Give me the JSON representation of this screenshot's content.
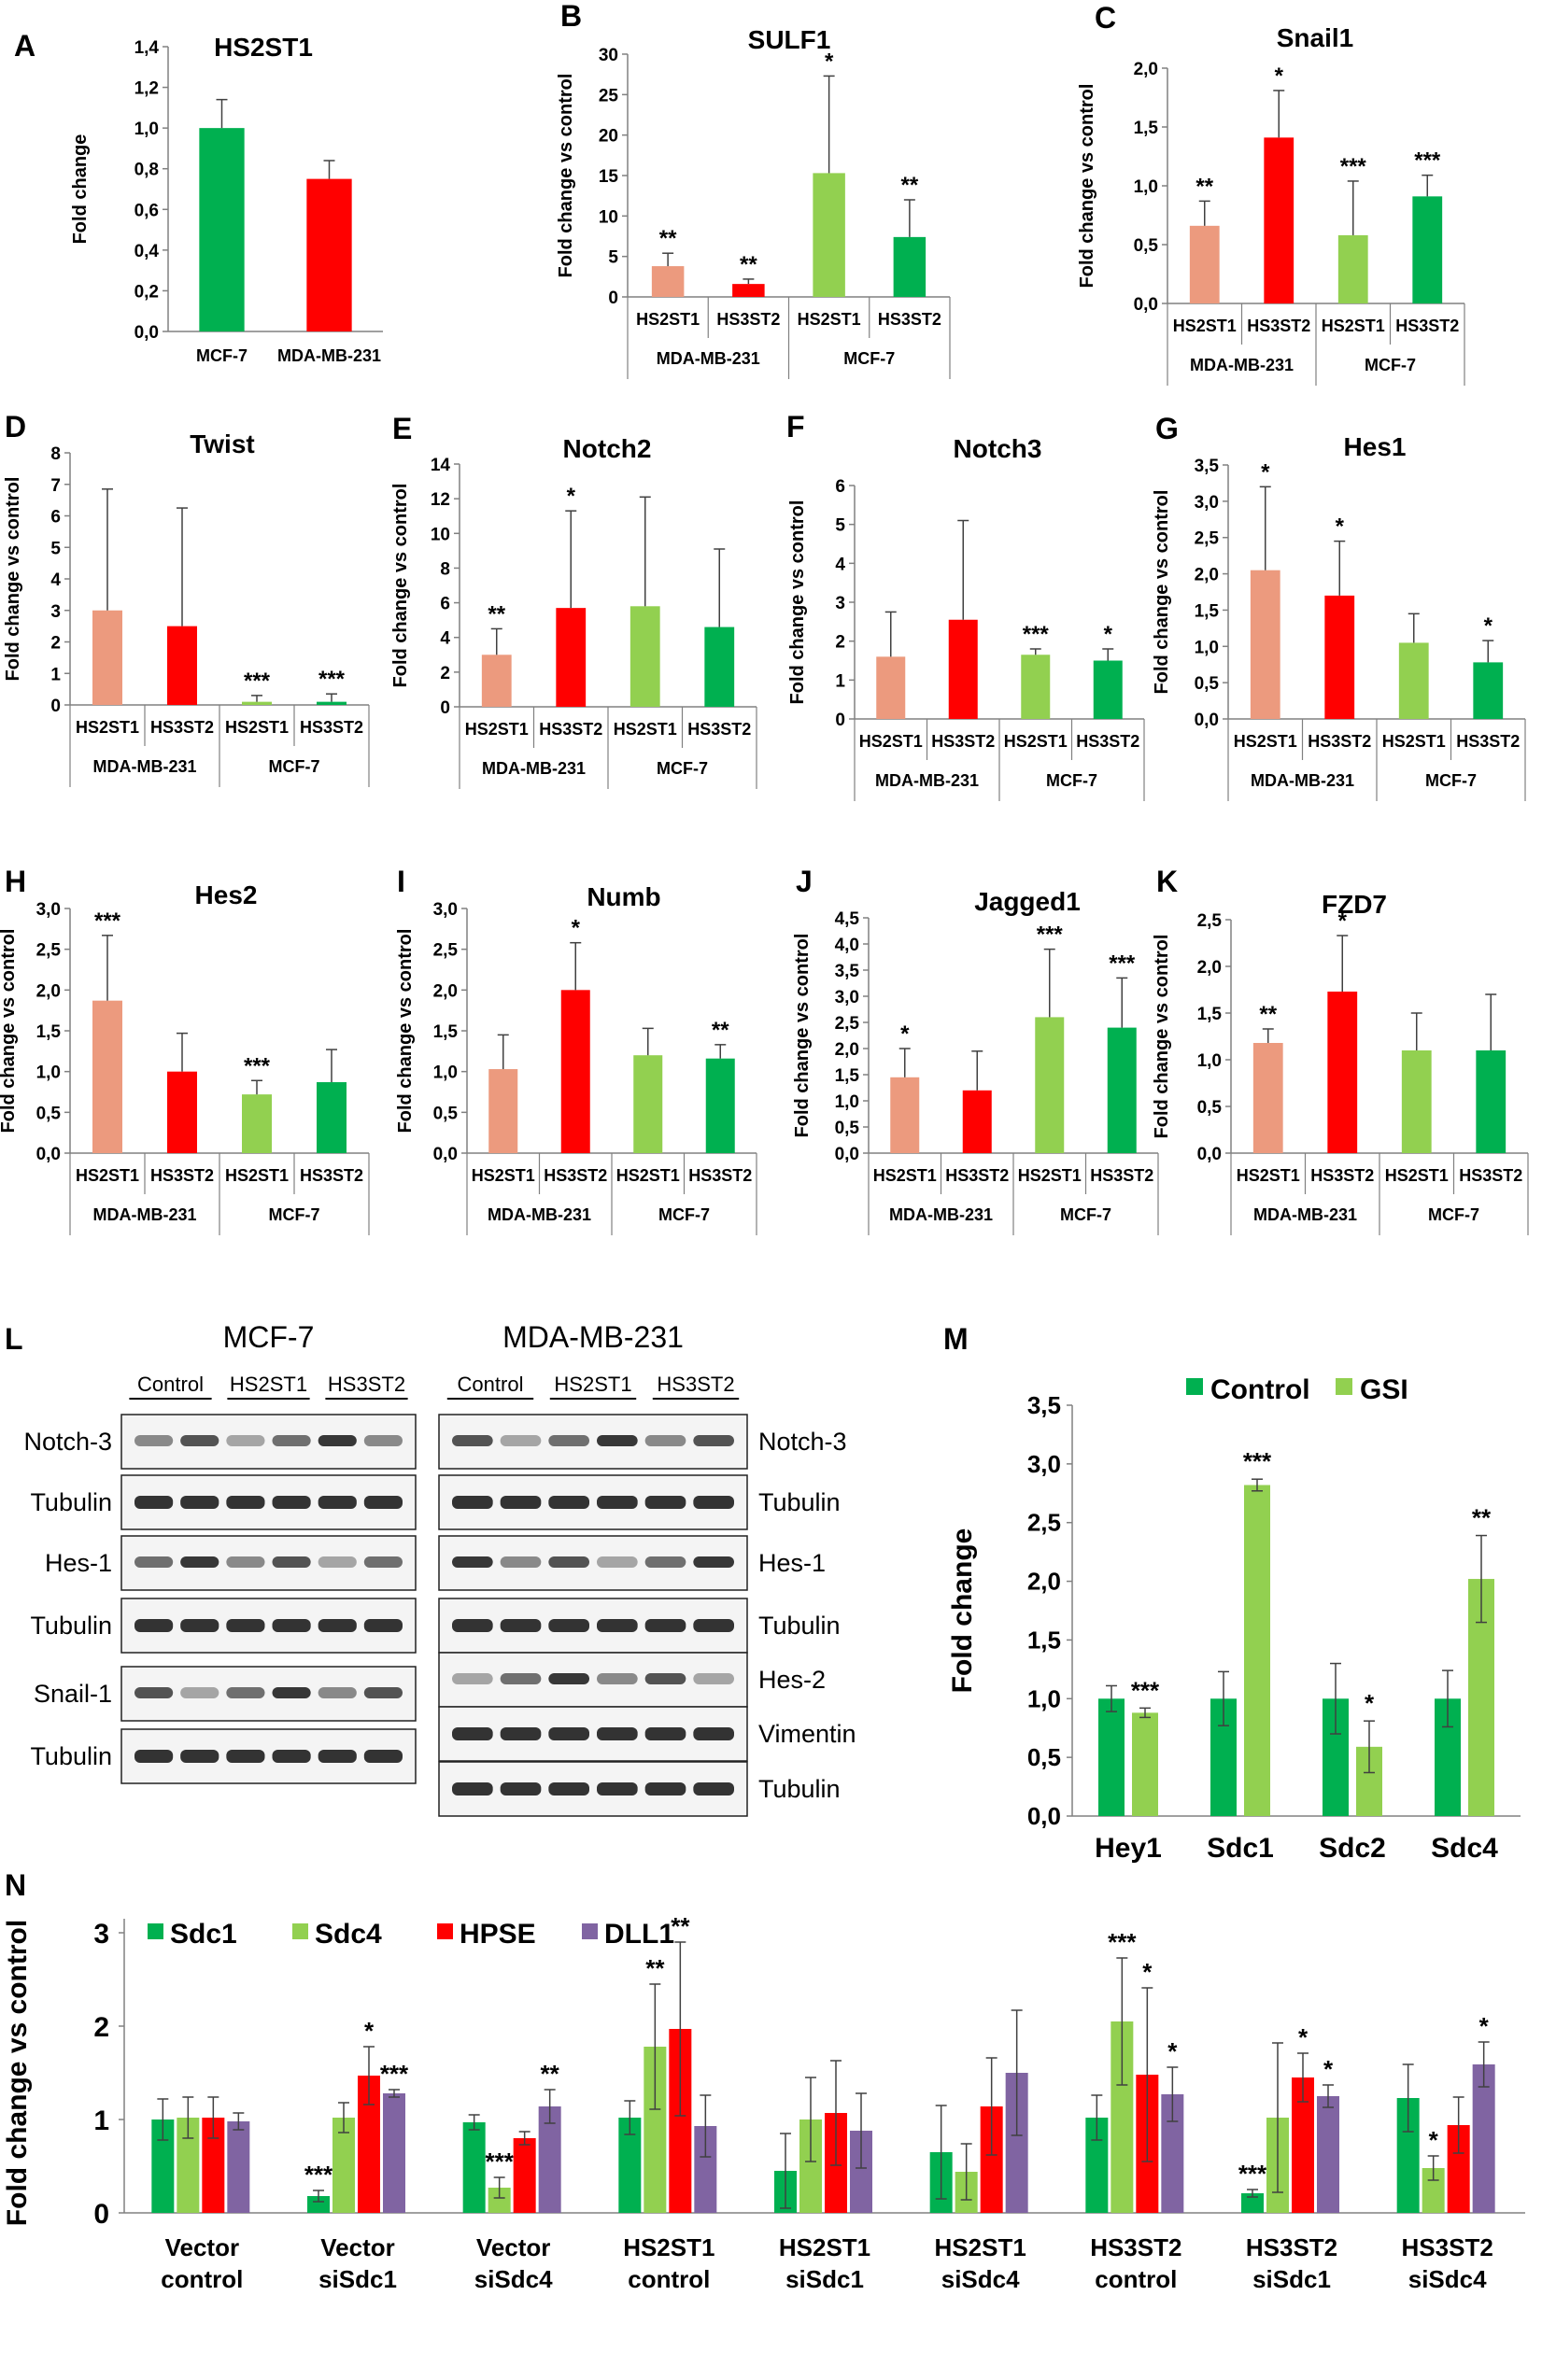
{
  "colors": {
    "salmon": "#ec9a7e",
    "red": "#ff0000",
    "lightgreen": "#92d050",
    "green": "#00b050",
    "purple": "#8064a2",
    "axis": "#808080",
    "error": "#404040"
  },
  "top_panels": [
    {
      "label": "A",
      "title": "HS2ST1",
      "ylabel": "Fold change",
      "ticks": [
        "0,0",
        "0,2",
        "0,4",
        "0,6",
        "0,8",
        "1,0",
        "1,2",
        "1,4"
      ],
      "ymax": 1.4,
      "bars": [
        {
          "name": "MCF-7",
          "value": 1.0,
          "err": 0.14,
          "color": "green",
          "sig": ""
        },
        {
          "name": "MDA-MB-231",
          "value": 0.75,
          "err": 0.09,
          "color": "red",
          "sig": ""
        }
      ]
    },
    {
      "label": "B",
      "title": "SULF1",
      "ylabel": "Fold change vs control",
      "ticks": [
        "0",
        "5",
        "10",
        "15",
        "20",
        "25",
        "30"
      ],
      "ymax": 30,
      "cats": [
        "HS2ST1",
        "HS3ST2",
        "HS2ST1",
        "HS3ST2"
      ],
      "groups": [
        "MDA-MB-231",
        "MCF-7"
      ],
      "values": [
        3.8,
        1.6,
        15.3,
        7.4
      ],
      "errs": [
        1.6,
        0.6,
        12.0,
        4.6
      ],
      "sigs": [
        "**",
        "**",
        "*",
        "**"
      ]
    },
    {
      "label": "C",
      "title": "Snail1",
      "ylabel": "Fold change vs control",
      "ticks": [
        "0,0",
        "0,5",
        "1,0",
        "1,5",
        "2,0"
      ],
      "ymax": 2.0,
      "cats": [
        "HS2ST1",
        "HS3ST2",
        "HS2ST1",
        "HS3ST2"
      ],
      "groups": [
        "MDA-MB-231",
        "MCF-7"
      ],
      "values": [
        0.66,
        1.41,
        0.58,
        0.91
      ],
      "errs": [
        0.21,
        0.4,
        0.46,
        0.18
      ],
      "sigs": [
        "**",
        "*",
        "***",
        "***"
      ]
    },
    {
      "label": "D",
      "title": "Twist",
      "ylabel": "Fold change vs control",
      "ticks": [
        "0",
        "1",
        "2",
        "3",
        "4",
        "5",
        "6",
        "7",
        "8"
      ],
      "ymax": 8,
      "cats": [
        "HS2ST1",
        "HS3ST2",
        "HS2ST1",
        "HS3ST2"
      ],
      "groups": [
        "MDA-MB-231",
        "MCF-7"
      ],
      "values": [
        3.0,
        2.5,
        0.1,
        0.1
      ],
      "errs": [
        3.85,
        3.75,
        0.2,
        0.25
      ],
      "sigs": [
        "",
        "",
        "***",
        "***"
      ]
    },
    {
      "label": "E",
      "title": "Notch2",
      "ylabel": "Fold change vs control",
      "ticks": [
        "0",
        "2",
        "4",
        "6",
        "8",
        "10",
        "12",
        "14"
      ],
      "ymax": 14,
      "cats": [
        "HS2ST1",
        "HS3ST2",
        "HS2ST1",
        "HS3ST2"
      ],
      "groups": [
        "MDA-MB-231",
        "MCF-7"
      ],
      "values": [
        3.0,
        5.7,
        5.8,
        4.6
      ],
      "errs": [
        1.5,
        5.6,
        6.3,
        4.5
      ],
      "sigs": [
        "**",
        "*",
        "",
        ""
      ]
    },
    {
      "label": "F",
      "title": "Notch3",
      "ylabel": "Fold change vs control",
      "ticks": [
        "0",
        "1",
        "2",
        "3",
        "4",
        "5",
        "6"
      ],
      "ymax": 6,
      "cats": [
        "HS2ST1",
        "HS3ST2",
        "HS2ST1",
        "HS3ST2"
      ],
      "groups": [
        "MDA-MB-231",
        "MCF-7"
      ],
      "values": [
        1.6,
        2.55,
        1.65,
        1.5
      ],
      "errs": [
        1.15,
        2.55,
        0.15,
        0.3
      ],
      "sigs": [
        "",
        "",
        "***",
        "*"
      ]
    },
    {
      "label": "G",
      "title": "Hes1",
      "ylabel": "Fold change vs control",
      "ticks": [
        "0,0",
        "0,5",
        "1,0",
        "1,5",
        "2,0",
        "2,5",
        "3,0",
        "3,5"
      ],
      "ymax": 3.5,
      "cats": [
        "HS2ST1",
        "HS3ST2",
        "HS2ST1",
        "HS3ST2"
      ],
      "groups": [
        "MDA-MB-231",
        "MCF-7"
      ],
      "values": [
        2.05,
        1.7,
        1.05,
        0.78
      ],
      "errs": [
        1.15,
        0.75,
        0.4,
        0.3
      ],
      "sigs": [
        "*",
        "*",
        "",
        "*"
      ]
    },
    {
      "label": "H",
      "title": "Hes2",
      "ylabel": "Fold change vs control",
      "ticks": [
        "0,0",
        "0,5",
        "1,0",
        "1,5",
        "2,0",
        "2,5",
        "3,0"
      ],
      "ymax": 3.0,
      "cats": [
        "HS2ST1",
        "HS3ST2",
        "HS2ST1",
        "HS3ST2"
      ],
      "groups": [
        "MDA-MB-231",
        "MCF-7"
      ],
      "values": [
        1.87,
        1.0,
        0.72,
        0.87
      ],
      "errs": [
        0.8,
        0.47,
        0.17,
        0.4
      ],
      "sigs": [
        "***",
        "",
        "***",
        ""
      ]
    },
    {
      "label": "I",
      "title": "Numb",
      "ylabel": "Fold change vs control",
      "ticks": [
        "0,0",
        "0,5",
        "1,0",
        "1,5",
        "2,0",
        "2,5",
        "3,0"
      ],
      "ymax": 3.0,
      "cats": [
        "HS2ST1",
        "HS3ST2",
        "HS2ST1",
        "HS3ST2"
      ],
      "groups": [
        "MDA-MB-231",
        "MCF-7"
      ],
      "values": [
        1.03,
        2.0,
        1.2,
        1.16
      ],
      "errs": [
        0.42,
        0.58,
        0.33,
        0.17
      ],
      "sigs": [
        "",
        "*",
        "",
        "**"
      ]
    },
    {
      "label": "J",
      "title": "Jagged1",
      "ylabel": "Fold change vs control",
      "ticks": [
        "0,0",
        "0,5",
        "1,0",
        "1,5",
        "2,0",
        "2,5",
        "3,0",
        "3,5",
        "4,0",
        "4,5"
      ],
      "ymax": 4.5,
      "cats": [
        "HS2ST1",
        "HS3ST2",
        "HS2ST1",
        "HS3ST2"
      ],
      "groups": [
        "MDA-MB-231",
        "MCF-7"
      ],
      "values": [
        1.45,
        1.2,
        2.6,
        2.4
      ],
      "errs": [
        0.55,
        0.75,
        1.3,
        0.95
      ],
      "sigs": [
        "*",
        "",
        "***",
        "***"
      ]
    },
    {
      "label": "K",
      "title": "FZD7",
      "ylabel": "Fold change vs control",
      "ticks": [
        "0,0",
        "0,5",
        "1,0",
        "1,5",
        "2,0",
        "2,5"
      ],
      "ymax": 2.5,
      "cats": [
        "HS2ST1",
        "HS3ST2",
        "HS2ST1",
        "HS3ST2"
      ],
      "groups": [
        "MDA-MB-231",
        "MCF-7"
      ],
      "values": [
        1.18,
        1.73,
        1.1,
        1.1
      ],
      "errs": [
        0.15,
        0.6,
        0.4,
        0.6
      ],
      "sigs": [
        "**",
        "*",
        "",
        ""
      ]
    }
  ],
  "blot_L": {
    "label": "L",
    "mcf7": {
      "title": "MCF-7",
      "lanes": [
        "Control",
        "HS2ST1",
        "HS3ST2"
      ],
      "rows": [
        "Notch-3",
        "Tubulin",
        "Hes-1",
        "Tubulin",
        "Snail-1",
        "Tubulin"
      ]
    },
    "mda": {
      "title": "MDA-MB-231",
      "lanes": [
        "Control",
        "HS2ST1",
        "HS3ST2"
      ],
      "rows": [
        "Notch-3",
        "Tubulin",
        "Hes-1",
        "Tubulin",
        "Hes-2",
        "Vimentin",
        "Tubulin"
      ]
    }
  },
  "panel_M": {
    "label": "M",
    "ylabel": "Fold change",
    "legend": [
      "Control",
      "GSI"
    ],
    "ticks": [
      "0,0",
      "0,5",
      "1,0",
      "1,5",
      "2,0",
      "2,5",
      "3,0",
      "3,5"
    ],
    "ymax": 3.5,
    "categories": [
      "Hey1",
      "Sdc1",
      "Sdc2",
      "Sdc4"
    ],
    "series": [
      {
        "name": "Control",
        "values": [
          1.0,
          1.0,
          1.0,
          1.0
        ],
        "errs": [
          0.11,
          0.23,
          0.3,
          0.24
        ],
        "sigs": [
          "",
          "",
          "",
          ""
        ]
      },
      {
        "name": "GSI",
        "values": [
          0.88,
          2.82,
          0.59,
          2.02
        ],
        "errs": [
          0.04,
          0.05,
          0.22,
          0.37
        ],
        "sigs": [
          "***",
          "***",
          "*",
          "**"
        ]
      }
    ]
  },
  "panel_N": {
    "label": "N",
    "ylabel": "Fold change vs control",
    "legend": [
      "Sdc1",
      "Sdc4",
      "HPSE",
      "DLL1"
    ],
    "ticks": [
      "0",
      "1",
      "2",
      "3"
    ],
    "ymax": 3,
    "categories": [
      [
        "Vector",
        "control"
      ],
      [
        "Vector",
        "siSdc1"
      ],
      [
        "Vector",
        "siSdc4"
      ],
      [
        "HS2ST1",
        "control"
      ],
      [
        "HS2ST1",
        "siSdc1"
      ],
      [
        "HS2ST1",
        "siSdc4"
      ],
      [
        "HS3ST2",
        "control"
      ],
      [
        "HS3ST2",
        "siSdc1"
      ],
      [
        "HS3ST2",
        "siSdc4"
      ]
    ],
    "series": [
      {
        "name": "Sdc1",
        "values": [
          1.0,
          0.18,
          0.97,
          1.02,
          0.45,
          0.65,
          1.02,
          0.21,
          1.23
        ],
        "errs": [
          0.22,
          0.06,
          0.08,
          0.18,
          0.4,
          0.5,
          0.24,
          0.04,
          0.36
        ],
        "sigs": [
          "",
          "***",
          "",
          "",
          "",
          "",
          "",
          "***",
          ""
        ]
      },
      {
        "name": "Sdc4",
        "values": [
          1.02,
          1.02,
          0.27,
          1.78,
          1.0,
          0.44,
          2.05,
          1.02,
          0.48
        ],
        "errs": [
          0.22,
          0.16,
          0.11,
          0.67,
          0.45,
          0.3,
          0.68,
          0.8,
          0.13
        ],
        "sigs": [
          "",
          "",
          "***",
          "**",
          "",
          "",
          "***",
          "",
          "*"
        ]
      },
      {
        "name": "HPSE",
        "values": [
          1.02,
          1.47,
          0.8,
          1.97,
          1.07,
          1.14,
          1.48,
          1.45,
          0.94
        ],
        "errs": [
          0.22,
          0.31,
          0.07,
          0.93,
          0.56,
          0.52,
          0.93,
          0.26,
          0.3
        ],
        "sigs": [
          "",
          "*",
          "",
          "**",
          "",
          "",
          "*",
          "*",
          ""
        ]
      },
      {
        "name": "DLL1",
        "values": [
          0.98,
          1.28,
          1.14,
          0.93,
          0.88,
          1.5,
          1.27,
          1.25,
          1.59
        ],
        "errs": [
          0.09,
          0.04,
          0.18,
          0.33,
          0.4,
          0.67,
          0.29,
          0.12,
          0.24
        ],
        "sigs": [
          "",
          "***",
          "**",
          "",
          "",
          "",
          "*",
          "*",
          "*"
        ]
      }
    ]
  }
}
